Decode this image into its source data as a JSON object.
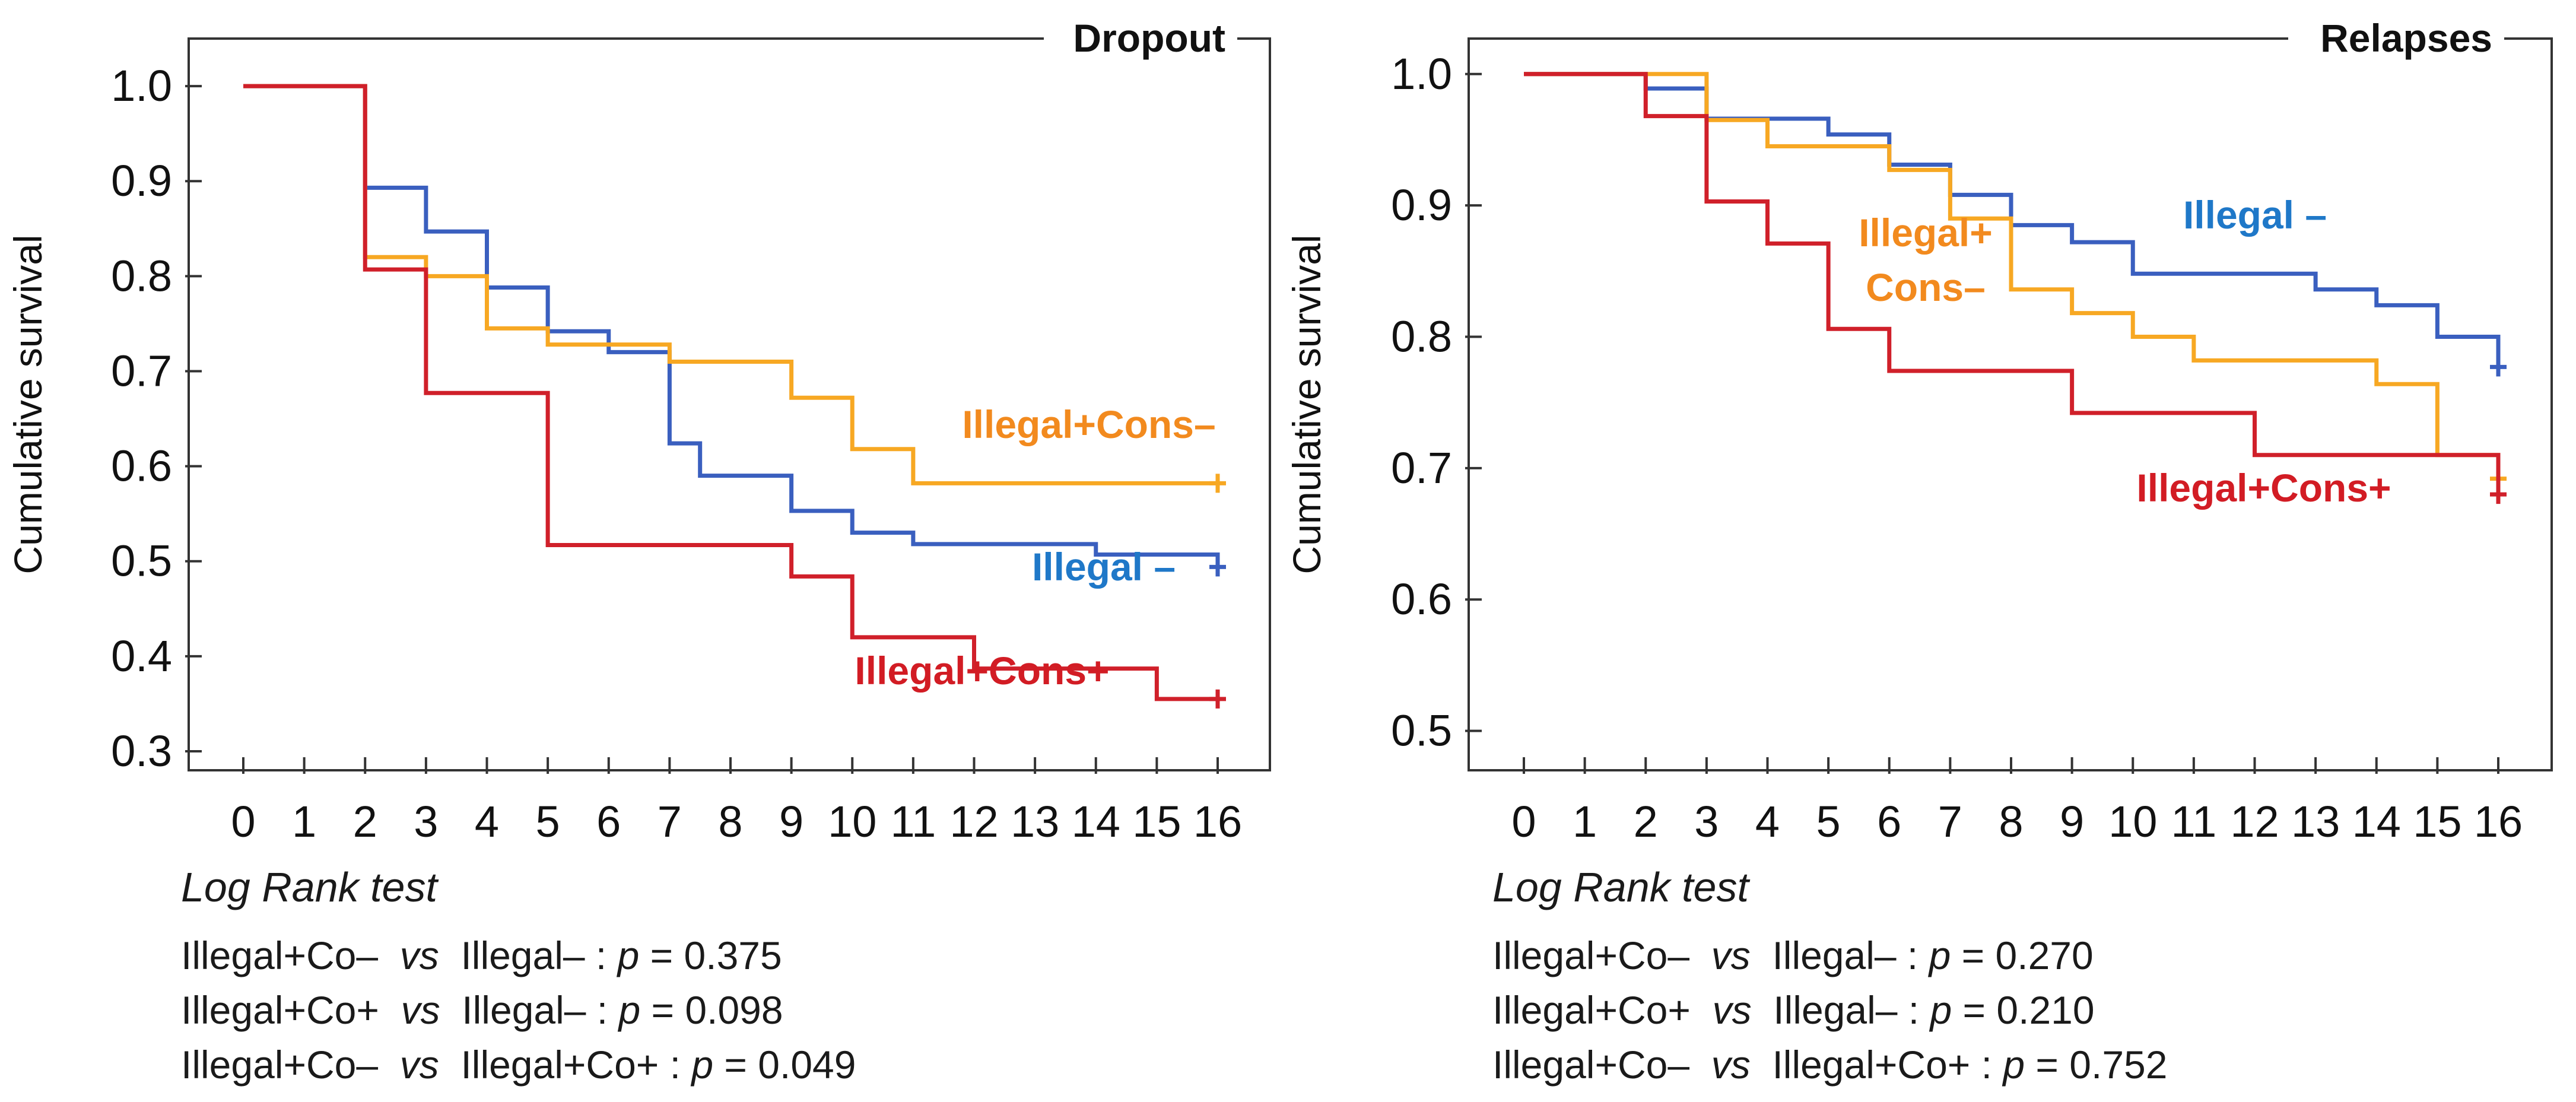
{
  "chart_data": [
    {
      "type": "line",
      "step": true,
      "title": "Dropout",
      "xlabel": "",
      "ylabel": "Cumulative survival",
      "xlim": [
        0,
        16
      ],
      "ylim": [
        0.28,
        1.05
      ],
      "xticks": [
        0,
        1,
        2,
        3,
        4,
        5,
        6,
        7,
        8,
        9,
        10,
        11,
        12,
        13,
        14,
        15,
        16
      ],
      "yticks": [
        1.0,
        0.9,
        0.8,
        0.7,
        0.6,
        0.5,
        0.4,
        0.3
      ],
      "ytick_labels": [
        "1.0",
        "0.9",
        "0.8",
        "0.7",
        "0.6",
        "0.5",
        "0.4",
        "0.3"
      ],
      "series": [
        {
          "name": "Illegal –",
          "color": "#3a5fbf",
          "label_color": "#1f78c8",
          "x": [
            0,
            2,
            3,
            4,
            5,
            6,
            7,
            7.5,
            9,
            10,
            11,
            14,
            16
          ],
          "y": [
            1.0,
            0.893,
            0.847,
            0.788,
            0.742,
            0.72,
            0.624,
            0.59,
            0.553,
            0.53,
            0.518,
            0.507,
            0.494
          ]
        },
        {
          "name": "Illegal+Cons–",
          "color": "#f7a823",
          "label_color": "#f28a1e",
          "x": [
            0,
            2,
            3,
            4,
            5,
            6,
            7,
            9,
            10,
            11,
            16
          ],
          "y": [
            1.0,
            0.82,
            0.8,
            0.745,
            0.728,
            0.728,
            0.71,
            0.672,
            0.618,
            0.582,
            0.582
          ]
        },
        {
          "name": "Illegal+Cons+",
          "color": "#d0202a",
          "label_color": "#d21c24",
          "x": [
            0,
            2,
            3,
            5,
            9,
            10,
            12,
            15,
            16
          ],
          "y": [
            1.0,
            0.807,
            0.677,
            0.517,
            0.484,
            0.42,
            0.387,
            0.355,
            0.355
          ]
        }
      ]
    },
    {
      "type": "line",
      "step": true,
      "title": "Relapses",
      "xlabel": "",
      "ylabel": "Cumulative survival",
      "xlim": [
        0,
        16
      ],
      "ylim": [
        0.47,
        1.027
      ],
      "xticks": [
        0,
        1,
        2,
        3,
        4,
        5,
        6,
        7,
        8,
        9,
        10,
        11,
        12,
        13,
        14,
        15,
        16
      ],
      "yticks": [
        1.0,
        0.9,
        0.8,
        0.7,
        0.6,
        0.5
      ],
      "ytick_labels": [
        "1.0",
        "0.9",
        "0.8",
        "0.7",
        "0.6",
        "0.5"
      ],
      "series": [
        {
          "name": "Illegal –",
          "color": "#3a5fbf",
          "label_color": "#1f78c8",
          "x": [
            0,
            2,
            3,
            5,
            6,
            7,
            8,
            9,
            10,
            13,
            14,
            15,
            16
          ],
          "y": [
            1.0,
            0.989,
            0.966,
            0.954,
            0.931,
            0.908,
            0.885,
            0.872,
            0.848,
            0.836,
            0.824,
            0.8,
            0.777
          ]
        },
        {
          "name": "Illegal+Cons–",
          "color": "#f7a823",
          "label_color": "#f28a1e",
          "x": [
            0,
            3,
            4,
            6,
            7,
            8,
            9,
            10,
            11,
            14,
            15,
            16
          ],
          "y": [
            1.0,
            0.965,
            0.945,
            0.927,
            0.89,
            0.836,
            0.818,
            0.8,
            0.782,
            0.764,
            0.71,
            0.692
          ]
        },
        {
          "name": "Illegal+Cons+",
          "color": "#d0202a",
          "label_color": "#d21c24",
          "x": [
            0,
            2,
            3,
            4,
            5,
            6,
            9,
            12,
            16
          ],
          "y": [
            1.0,
            0.968,
            0.903,
            0.871,
            0.806,
            0.774,
            0.742,
            0.71,
            0.68
          ]
        }
      ]
    }
  ],
  "notes": {
    "left": {
      "heading": "Log Rank test",
      "rows": [
        {
          "a": "Illegal+Co–",
          "vs": "vs",
          "b": "Illegal–",
          "p_label": "p",
          "p_value": "= 0.375"
        },
        {
          "a": "Illegal+Co+",
          "vs": "vs",
          "b": "Illegal–",
          "p_label": "p",
          "p_value": "= 0.098"
        },
        {
          "a": "Illegal+Co–",
          "vs": "vs",
          "b": "Illegal+Co+",
          "p_label": "p",
          "p_value": "= 0.049"
        }
      ]
    },
    "right": {
      "heading": "Log Rank test",
      "rows": [
        {
          "a": "Illegal+Co–",
          "vs": "vs",
          "b": "Illegal–",
          "p_label": "p",
          "p_value": "= 0.270"
        },
        {
          "a": "Illegal+Co+",
          "vs": "vs",
          "b": "Illegal–",
          "p_label": "p",
          "p_value": "= 0.210"
        },
        {
          "a": "Illegal+Co–",
          "vs": "vs",
          "b": "Illegal+Co+",
          "p_label": "p",
          "p_value": "= 0.752"
        }
      ]
    }
  }
}
